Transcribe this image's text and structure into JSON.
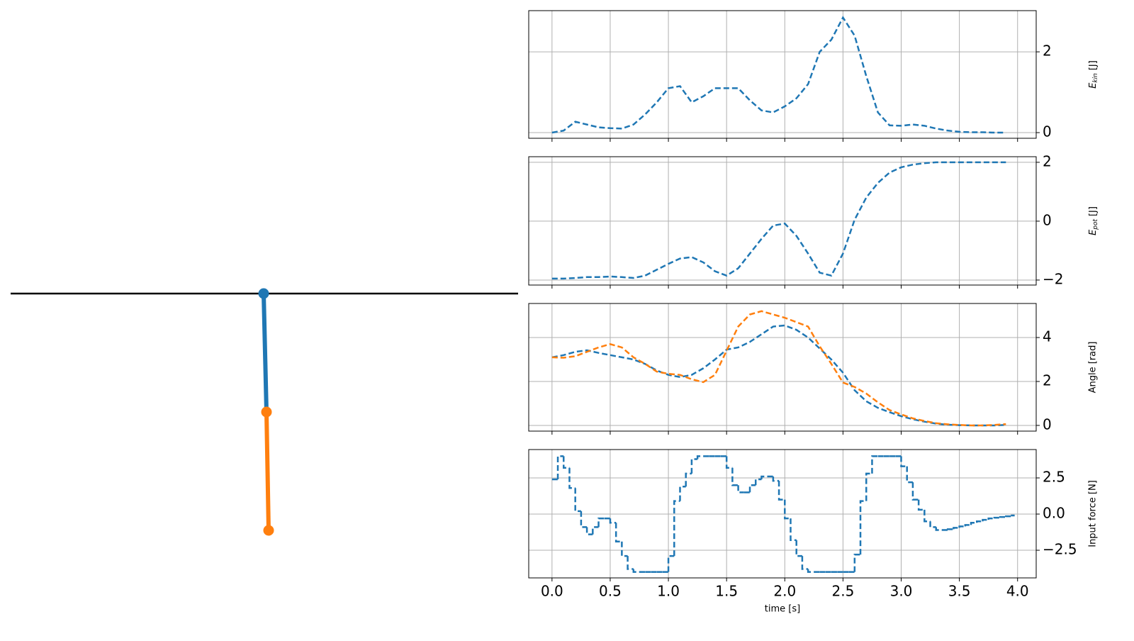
{
  "chart_data": [
    {
      "type": "line",
      "grid": true,
      "linestyle": "dashed",
      "ylabel": {
        "symbol": "E",
        "subscript": "kin",
        "unit": "[J]"
      },
      "x": [
        0,
        0.1,
        0.2,
        0.3,
        0.4,
        0.5,
        0.6,
        0.7,
        0.8,
        0.9,
        1.0,
        1.1,
        1.2,
        1.3,
        1.4,
        1.5,
        1.6,
        1.7,
        1.8,
        1.9,
        2.0,
        2.1,
        2.2,
        2.3,
        2.4,
        2.5,
        2.6,
        2.7,
        2.8,
        2.9,
        3.0,
        3.1,
        3.2,
        3.3,
        3.4,
        3.5,
        3.6,
        3.7,
        3.8,
        3.9
      ],
      "series": [
        {
          "color": "#1f77b4",
          "values": [
            0,
            0.05,
            0.27,
            0.2,
            0.13,
            0.11,
            0.1,
            0.2,
            0.45,
            0.75,
            1.1,
            1.15,
            0.75,
            0.9,
            1.1,
            1.1,
            1.1,
            0.8,
            0.55,
            0.5,
            0.65,
            0.85,
            1.2,
            2.0,
            2.3,
            2.85,
            2.4,
            1.4,
            0.5,
            0.18,
            0.17,
            0.2,
            0.17,
            0.1,
            0.05,
            0.02,
            0.01,
            0.01,
            0,
            0
          ]
        }
      ],
      "xlim": [
        -0.2,
        4.16
      ],
      "xticks": [
        0,
        0.5,
        1,
        1.5,
        2,
        2.5,
        3,
        3.5,
        4
      ],
      "ylim": [
        -0.14,
        3.02
      ],
      "yticks": [
        0,
        2
      ]
    },
    {
      "type": "line",
      "grid": true,
      "linestyle": "dashed",
      "ylabel": {
        "symbol": "E",
        "subscript": "pot",
        "unit": "[J]"
      },
      "x": [
        0,
        0.1,
        0.2,
        0.3,
        0.4,
        0.5,
        0.6,
        0.7,
        0.8,
        0.9,
        1.0,
        1.1,
        1.2,
        1.3,
        1.4,
        1.5,
        1.6,
        1.7,
        1.8,
        1.9,
        2.0,
        2.1,
        2.2,
        2.3,
        2.4,
        2.5,
        2.6,
        2.7,
        2.8,
        2.9,
        3.0,
        3.1,
        3.2,
        3.3,
        3.4,
        3.5,
        3.6,
        3.7,
        3.8,
        3.9
      ],
      "series": [
        {
          "color": "#1f77b4",
          "values": [
            -1.95,
            -1.95,
            -1.93,
            -1.9,
            -1.9,
            -1.88,
            -1.9,
            -1.93,
            -1.85,
            -1.65,
            -1.45,
            -1.27,
            -1.22,
            -1.4,
            -1.7,
            -1.85,
            -1.6,
            -1.1,
            -0.6,
            -0.15,
            -0.08,
            -0.5,
            -1.1,
            -1.75,
            -1.85,
            -1.1,
            0.05,
            0.8,
            1.3,
            1.65,
            1.83,
            1.92,
            1.97,
            2,
            2,
            2,
            2,
            2,
            2,
            2
          ]
        }
      ],
      "xlim": [
        -0.2,
        4.16
      ],
      "xticks": [
        0,
        0.5,
        1,
        1.5,
        2,
        2.5,
        3,
        3.5,
        4
      ],
      "ylim": [
        -2.17,
        2.19
      ],
      "yticks": [
        {
          "value": -2,
          "label": "−2"
        },
        0,
        2
      ]
    },
    {
      "type": "line",
      "grid": true,
      "linestyle": "dashed",
      "ylabel": "Angle  [rad]",
      "x": [
        0,
        0.1,
        0.2,
        0.3,
        0.4,
        0.5,
        0.6,
        0.7,
        0.8,
        0.9,
        1.0,
        1.1,
        1.2,
        1.3,
        1.4,
        1.5,
        1.6,
        1.7,
        1.8,
        1.9,
        2.0,
        2.1,
        2.2,
        2.3,
        2.4,
        2.5,
        2.6,
        2.7,
        2.8,
        2.9,
        3.0,
        3.1,
        3.2,
        3.3,
        3.4,
        3.5,
        3.6,
        3.7,
        3.8,
        3.9
      ],
      "series": [
        {
          "color": "#1f77b4",
          "values": [
            3.1,
            3.2,
            3.35,
            3.42,
            3.3,
            3.2,
            3.1,
            3.0,
            2.8,
            2.5,
            2.3,
            2.2,
            2.3,
            2.6,
            3.0,
            3.45,
            3.55,
            3.8,
            4.15,
            4.5,
            4.55,
            4.35,
            4.0,
            3.5,
            3.0,
            2.4,
            1.6,
            1.1,
            0.8,
            0.6,
            0.42,
            0.28,
            0.17,
            0.08,
            0.03,
            0.01,
            0,
            0,
            0,
            0.02
          ]
        },
        {
          "color": "#ff7f0e",
          "values": [
            3.1,
            3.08,
            3.15,
            3.35,
            3.55,
            3.7,
            3.55,
            3.1,
            2.8,
            2.45,
            2.35,
            2.3,
            2.1,
            1.97,
            2.3,
            3.4,
            4.5,
            5.05,
            5.2,
            5.05,
            4.9,
            4.7,
            4.5,
            3.6,
            2.8,
            1.95,
            1.75,
            1.45,
            1.05,
            0.7,
            0.5,
            0.32,
            0.2,
            0.1,
            0.05,
            0.02,
            0,
            0,
            0.02,
            0.06
          ]
        }
      ],
      "xlim": [
        -0.2,
        4.16
      ],
      "xticks": [
        0,
        0.5,
        1,
        1.5,
        2,
        2.5,
        3,
        3.5,
        4
      ],
      "ylim": [
        -0.26,
        5.55
      ],
      "yticks": [
        0,
        2,
        4
      ]
    },
    {
      "type": "step",
      "grid": true,
      "linestyle": "dashed",
      "ylabel": "Input force [N]",
      "xlabel": "time [s]",
      "x": [
        0,
        0.05,
        0.1,
        0.15,
        0.2,
        0.25,
        0.3,
        0.35,
        0.4,
        0.45,
        0.5,
        0.55,
        0.6,
        0.65,
        0.7,
        0.75,
        0.8,
        0.85,
        0.9,
        0.95,
        1.0,
        1.05,
        1.1,
        1.15,
        1.2,
        1.25,
        1.3,
        1.35,
        1.4,
        1.45,
        1.5,
        1.55,
        1.6,
        1.65,
        1.7,
        1.75,
        1.8,
        1.85,
        1.9,
        1.95,
        2.0,
        2.05,
        2.1,
        2.15,
        2.2,
        2.25,
        2.3,
        2.35,
        2.4,
        2.45,
        2.5,
        2.55,
        2.6,
        2.65,
        2.7,
        2.75,
        2.8,
        2.85,
        2.9,
        2.95,
        3.0,
        3.05,
        3.1,
        3.15,
        3.2,
        3.25,
        3.3,
        3.35,
        3.4,
        3.45,
        3.5,
        3.55,
        3.6,
        3.65,
        3.7,
        3.75,
        3.8,
        3.85,
        3.9,
        3.95
      ],
      "series": [
        {
          "color": "#1f77b4",
          "values": [
            2.4,
            4.0,
            3.2,
            1.8,
            0.2,
            -0.9,
            -1.4,
            -0.9,
            -0.3,
            -0.3,
            -0.6,
            -1.9,
            -2.9,
            -3.8,
            -4.0,
            -4.0,
            -4.0,
            -4.0,
            -4.0,
            -4.0,
            -2.9,
            0.9,
            1.9,
            2.8,
            3.8,
            4.0,
            4.0,
            4.0,
            4.0,
            4.0,
            3.2,
            2.0,
            1.5,
            1.5,
            2.0,
            2.4,
            2.6,
            2.6,
            2.3,
            1.0,
            -0.3,
            -1.8,
            -2.9,
            -3.8,
            -4.0,
            -4.0,
            -4.0,
            -4.0,
            -4.0,
            -4.0,
            -4.0,
            -4.0,
            -2.8,
            0.9,
            2.8,
            4.0,
            4.0,
            4.0,
            4.0,
            4.0,
            3.3,
            2.2,
            1.0,
            0.3,
            -0.5,
            -0.9,
            -1.1,
            -1.1,
            -1.05,
            -0.95,
            -0.85,
            -0.75,
            -0.6,
            -0.5,
            -0.4,
            -0.3,
            -0.25,
            -0.2,
            -0.15,
            -0.1
          ]
        }
      ],
      "xlim": [
        -0.2,
        4.16
      ],
      "xticks": [
        {
          "value": 0,
          "label": "0.0"
        },
        0.5,
        {
          "value": 1,
          "label": "1.0"
        },
        1.5,
        {
          "value": 2,
          "label": "2.0"
        },
        2.5,
        {
          "value": 3,
          "label": "3.0"
        },
        3.5,
        {
          "value": 4,
          "label": "4.0"
        }
      ],
      "ylim": [
        -4.41,
        4.46
      ],
      "yticks": [
        {
          "value": -2.5,
          "label": "−2.5"
        },
        {
          "value": 0,
          "label": "0.0"
        },
        {
          "value": 2.5,
          "label": "2.5"
        }
      ]
    }
  ]
}
